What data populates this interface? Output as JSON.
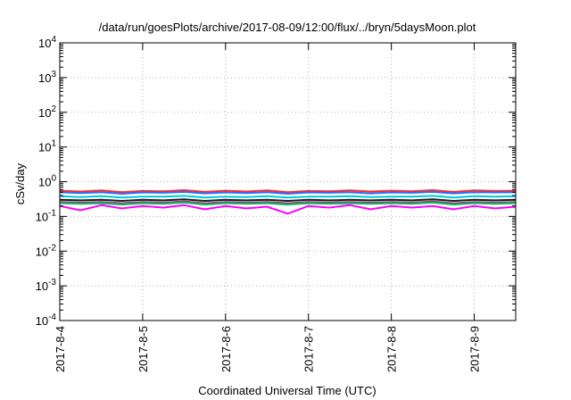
{
  "chart_data": {
    "type": "line",
    "title": "/data/run/goesPlots/archive/2017-08-09/12:00/flux/../bryn/5daysMoon.plot",
    "xlabel": "Coordinated Universal Time (UTC)",
    "ylabel": "cSv/day",
    "yscale": "log",
    "grid": true,
    "ylim": [
      0.0001,
      10000
    ],
    "xlim": [
      "2017-08-04 00:00",
      "2017-08-09 12:00"
    ],
    "y_ticks": [
      {
        "value": 0.0001,
        "base": "10",
        "exp": "-4"
      },
      {
        "value": 0.001,
        "base": "10",
        "exp": "-3"
      },
      {
        "value": 0.01,
        "base": "10",
        "exp": "-2"
      },
      {
        "value": 0.1,
        "base": "10",
        "exp": "-1"
      },
      {
        "value": 1,
        "base": "10",
        "exp": "0"
      },
      {
        "value": 10,
        "base": "10",
        "exp": "1"
      },
      {
        "value": 100,
        "base": "10",
        "exp": "2"
      },
      {
        "value": 1000,
        "base": "10",
        "exp": "3"
      },
      {
        "value": 10000,
        "base": "10",
        "exp": "4"
      }
    ],
    "x_ticks": [
      {
        "value": "2017-08-04",
        "label": "2017-8-4"
      },
      {
        "value": "2017-08-05",
        "label": "2017-8-5"
      },
      {
        "value": "2017-08-06",
        "label": "2017-8-6"
      },
      {
        "value": "2017-08-07",
        "label": "2017-8-7"
      },
      {
        "value": "2017-08-08",
        "label": "2017-8-8"
      },
      {
        "value": "2017-08-09",
        "label": "2017-8-9"
      }
    ],
    "x": [
      "2017-08-04 00:00",
      "2017-08-04 06:00",
      "2017-08-04 12:00",
      "2017-08-04 18:00",
      "2017-08-05 00:00",
      "2017-08-05 06:00",
      "2017-08-05 12:00",
      "2017-08-05 18:00",
      "2017-08-06 00:00",
      "2017-08-06 06:00",
      "2017-08-06 12:00",
      "2017-08-06 18:00",
      "2017-08-07 00:00",
      "2017-08-07 06:00",
      "2017-08-07 12:00",
      "2017-08-07 18:00",
      "2017-08-08 00:00",
      "2017-08-08 06:00",
      "2017-08-08 12:00",
      "2017-08-08 18:00",
      "2017-08-09 00:00",
      "2017-08-09 06:00",
      "2017-08-09 12:00"
    ],
    "series": [
      {
        "color": "#ff2a2a",
        "values": [
          0.55,
          0.52,
          0.56,
          0.5,
          0.54,
          0.53,
          0.57,
          0.51,
          0.55,
          0.52,
          0.56,
          0.5,
          0.54,
          0.53,
          0.56,
          0.52,
          0.55,
          0.53,
          0.57,
          0.51,
          0.56,
          0.54,
          0.55
        ]
      },
      {
        "color": "#2a6aff",
        "values": [
          0.5,
          0.47,
          0.5,
          0.45,
          0.49,
          0.48,
          0.51,
          0.46,
          0.49,
          0.47,
          0.5,
          0.45,
          0.49,
          0.48,
          0.5,
          0.46,
          0.49,
          0.48,
          0.51,
          0.46,
          0.5,
          0.49,
          0.5
        ]
      },
      {
        "color": "#00c8d8",
        "values": [
          0.38,
          0.36,
          0.38,
          0.35,
          0.37,
          0.37,
          0.39,
          0.35,
          0.37,
          0.36,
          0.38,
          0.35,
          0.37,
          0.37,
          0.38,
          0.36,
          0.37,
          0.37,
          0.39,
          0.35,
          0.38,
          0.37,
          0.38
        ]
      },
      {
        "color": "#1a1a1a",
        "values": [
          0.3,
          0.29,
          0.3,
          0.28,
          0.3,
          0.29,
          0.31,
          0.28,
          0.3,
          0.29,
          0.3,
          0.28,
          0.3,
          0.29,
          0.3,
          0.29,
          0.3,
          0.29,
          0.31,
          0.28,
          0.3,
          0.29,
          0.3
        ]
      },
      {
        "color": "#a03c78",
        "values": [
          0.26,
          0.25,
          0.26,
          0.24,
          0.26,
          0.25,
          0.27,
          0.24,
          0.26,
          0.25,
          0.26,
          0.24,
          0.26,
          0.25,
          0.26,
          0.25,
          0.26,
          0.25,
          0.27,
          0.24,
          0.26,
          0.25,
          0.26
        ]
      },
      {
        "color": "#00c060",
        "values": [
          0.24,
          0.23,
          0.24,
          0.22,
          0.24,
          0.23,
          0.25,
          0.22,
          0.24,
          0.23,
          0.24,
          0.22,
          0.24,
          0.23,
          0.24,
          0.23,
          0.24,
          0.23,
          0.25,
          0.22,
          0.24,
          0.23,
          0.24
        ]
      },
      {
        "color": "#ff00ff",
        "values": [
          0.2,
          0.15,
          0.21,
          0.17,
          0.2,
          0.18,
          0.21,
          0.16,
          0.2,
          0.17,
          0.19,
          0.12,
          0.2,
          0.18,
          0.21,
          0.16,
          0.2,
          0.18,
          0.2,
          0.16,
          0.2,
          0.17,
          0.19
        ]
      }
    ]
  }
}
